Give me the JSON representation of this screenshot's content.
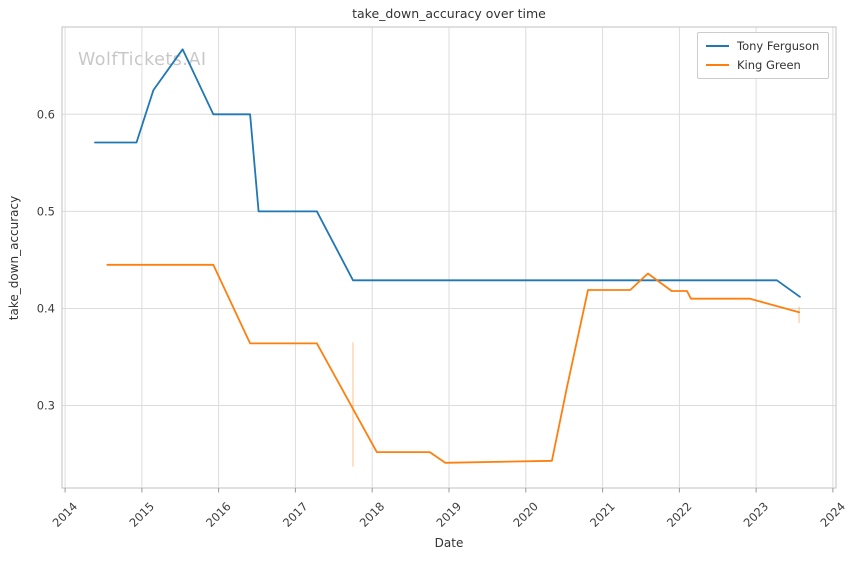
{
  "watermark": "WolfTickets.AI",
  "chart_data": {
    "type": "line",
    "title": "take_down_accuracy over time",
    "xlabel": "Date",
    "ylabel": "take_down_accuracy",
    "x_ticks": [
      2014,
      2015,
      2016,
      2017,
      2018,
      2019,
      2020,
      2021,
      2022,
      2023,
      2024
    ],
    "y_ticks": [
      0.3,
      0.4,
      0.5,
      0.6
    ],
    "xlim": [
      2013.96,
      2024.04
    ],
    "ylim": [
      0.215,
      0.69
    ],
    "grid": true,
    "legend_position": "upper right",
    "series": [
      {
        "name": "Tony Ferguson",
        "color": "#1f77b4",
        "points": [
          [
            2014.39,
            0.571
          ],
          [
            2014.93,
            0.571
          ],
          [
            2015.15,
            0.625
          ],
          [
            2015.53,
            0.667
          ],
          [
            2015.93,
            0.6
          ],
          [
            2016.41,
            0.6
          ],
          [
            2016.52,
            0.5
          ],
          [
            2017.28,
            0.5
          ],
          [
            2017.75,
            0.429
          ],
          [
            2023.27,
            0.429
          ],
          [
            2023.57,
            0.412
          ]
        ]
      },
      {
        "name": "King Green",
        "color": "#ff7f0e",
        "points": [
          [
            2014.55,
            0.445
          ],
          [
            2015.93,
            0.445
          ],
          [
            2016.41,
            0.364
          ],
          [
            2017.28,
            0.364
          ],
          [
            2018.06,
            0.252
          ],
          [
            2018.75,
            0.252
          ],
          [
            2018.95,
            0.241
          ],
          [
            2020.34,
            0.243
          ],
          [
            2020.54,
            0.32
          ],
          [
            2020.81,
            0.419
          ],
          [
            2021.36,
            0.419
          ],
          [
            2021.59,
            0.436
          ],
          [
            2021.9,
            0.418
          ],
          [
            2022.1,
            0.418
          ],
          [
            2022.15,
            0.41
          ],
          [
            2022.92,
            0.41
          ],
          [
            2023.56,
            0.396
          ]
        ]
      }
    ],
    "event_markers": [
      {
        "x": 2017.75,
        "y_from": 0.237,
        "y_to": 0.365,
        "color": "rgba(255,127,14,0.35)"
      },
      {
        "x": 2023.56,
        "y_from": 0.385,
        "y_to": 0.402,
        "color": "rgba(255,127,14,0.35)"
      }
    ],
    "grid_color": "#dcdcdc",
    "spine_color": "#cccccc",
    "tick_color": "#999999"
  }
}
